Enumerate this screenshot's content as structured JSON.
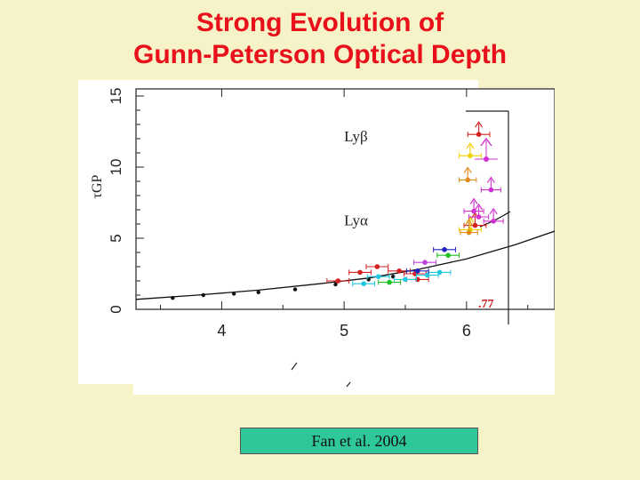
{
  "slide": {
    "title_line1": "Strong Evolution of",
    "title_line2": "Gunn-Peterson Optical Depth",
    "citation": "Fan et al. 2004"
  },
  "colors": {
    "background": "#f6f3c8",
    "title": "#e8101a",
    "citation_box": "#2ec79a"
  },
  "chart_data": {
    "type": "scatter",
    "xlabel": "",
    "ylabel": "",
    "xlim": [
      3.3,
      6.72
    ],
    "ylim": [
      0,
      15.5
    ],
    "xticks": [
      4,
      5,
      6
    ],
    "yticks": [
      0,
      5,
      10,
      15
    ],
    "annotations": [
      "Lyβ",
      "Lyα"
    ],
    "side_label": "τGP",
    "right_fragment": ".77",
    "model_curve": {
      "x": [
        3.3,
        3.8,
        4.3,
        4.8,
        5.2,
        5.6,
        6.0,
        6.4,
        6.72
      ],
      "y": [
        0.7,
        1.0,
        1.35,
        1.8,
        2.2,
        2.8,
        3.55,
        4.55,
        5.5
      ]
    },
    "series": [
      {
        "name": "",
        "color": "#111111",
        "x": [
          3.6,
          3.85,
          4.1,
          4.3,
          4.6,
          4.93,
          5.2,
          5.4
        ],
        "y": [
          0.8,
          1.0,
          1.1,
          1.2,
          1.4,
          1.75,
          2.1,
          2.3
        ],
        "xerr": 0,
        "marker": "point"
      },
      {
        "name": "",
        "color": "#d42020",
        "x": [
          4.95,
          5.13,
          5.27,
          5.45,
          5.58,
          5.6
        ],
        "y": [
          2.0,
          2.6,
          3.0,
          2.7,
          2.5,
          2.1
        ],
        "xerr": 0.09
      },
      {
        "name": "",
        "color": "#20c8e0",
        "x": [
          5.16,
          5.28,
          5.5,
          5.68,
          5.78
        ],
        "y": [
          1.8,
          2.3,
          2.1,
          2.4,
          2.6
        ],
        "xerr": 0.09
      },
      {
        "name": "",
        "color": "#20c020",
        "x": [
          5.37,
          5.85
        ],
        "y": [
          1.9,
          3.8
        ],
        "xerr": 0.09
      },
      {
        "name": "",
        "color": "#c040e0",
        "x": [
          5.66
        ],
        "y": [
          3.3
        ],
        "xerr": 0.09
      },
      {
        "name": "",
        "color": "#2020c0",
        "x": [
          5.6,
          5.82
        ],
        "y": [
          2.7,
          4.2
        ],
        "xerr": 0.09
      },
      {
        "name": "",
        "color": "#d42020",
        "x": [
          6.1,
          6.07
        ],
        "y": [
          12.3,
          5.9
        ],
        "xerr": 0.09,
        "lower_limit": true
      },
      {
        "name": "",
        "color": "#f0d000",
        "x": [
          6.03,
          6.03
        ],
        "y": [
          10.8,
          5.6
        ],
        "xerr": 0.09,
        "lower_limit": true
      },
      {
        "name": "",
        "color": "#e08a1a",
        "x": [
          6.01,
          6.02
        ],
        "y": [
          9.1,
          5.4
        ],
        "xerr": 0.07,
        "lower_limit": true
      },
      {
        "name": "",
        "color": "#d030d0",
        "x": [
          6.2,
          6.22,
          6.06,
          6.1
        ],
        "y": [
          8.4,
          6.2,
          6.9,
          6.5
        ],
        "xerr": 0.08,
        "lower_limit": true
      }
    ]
  }
}
